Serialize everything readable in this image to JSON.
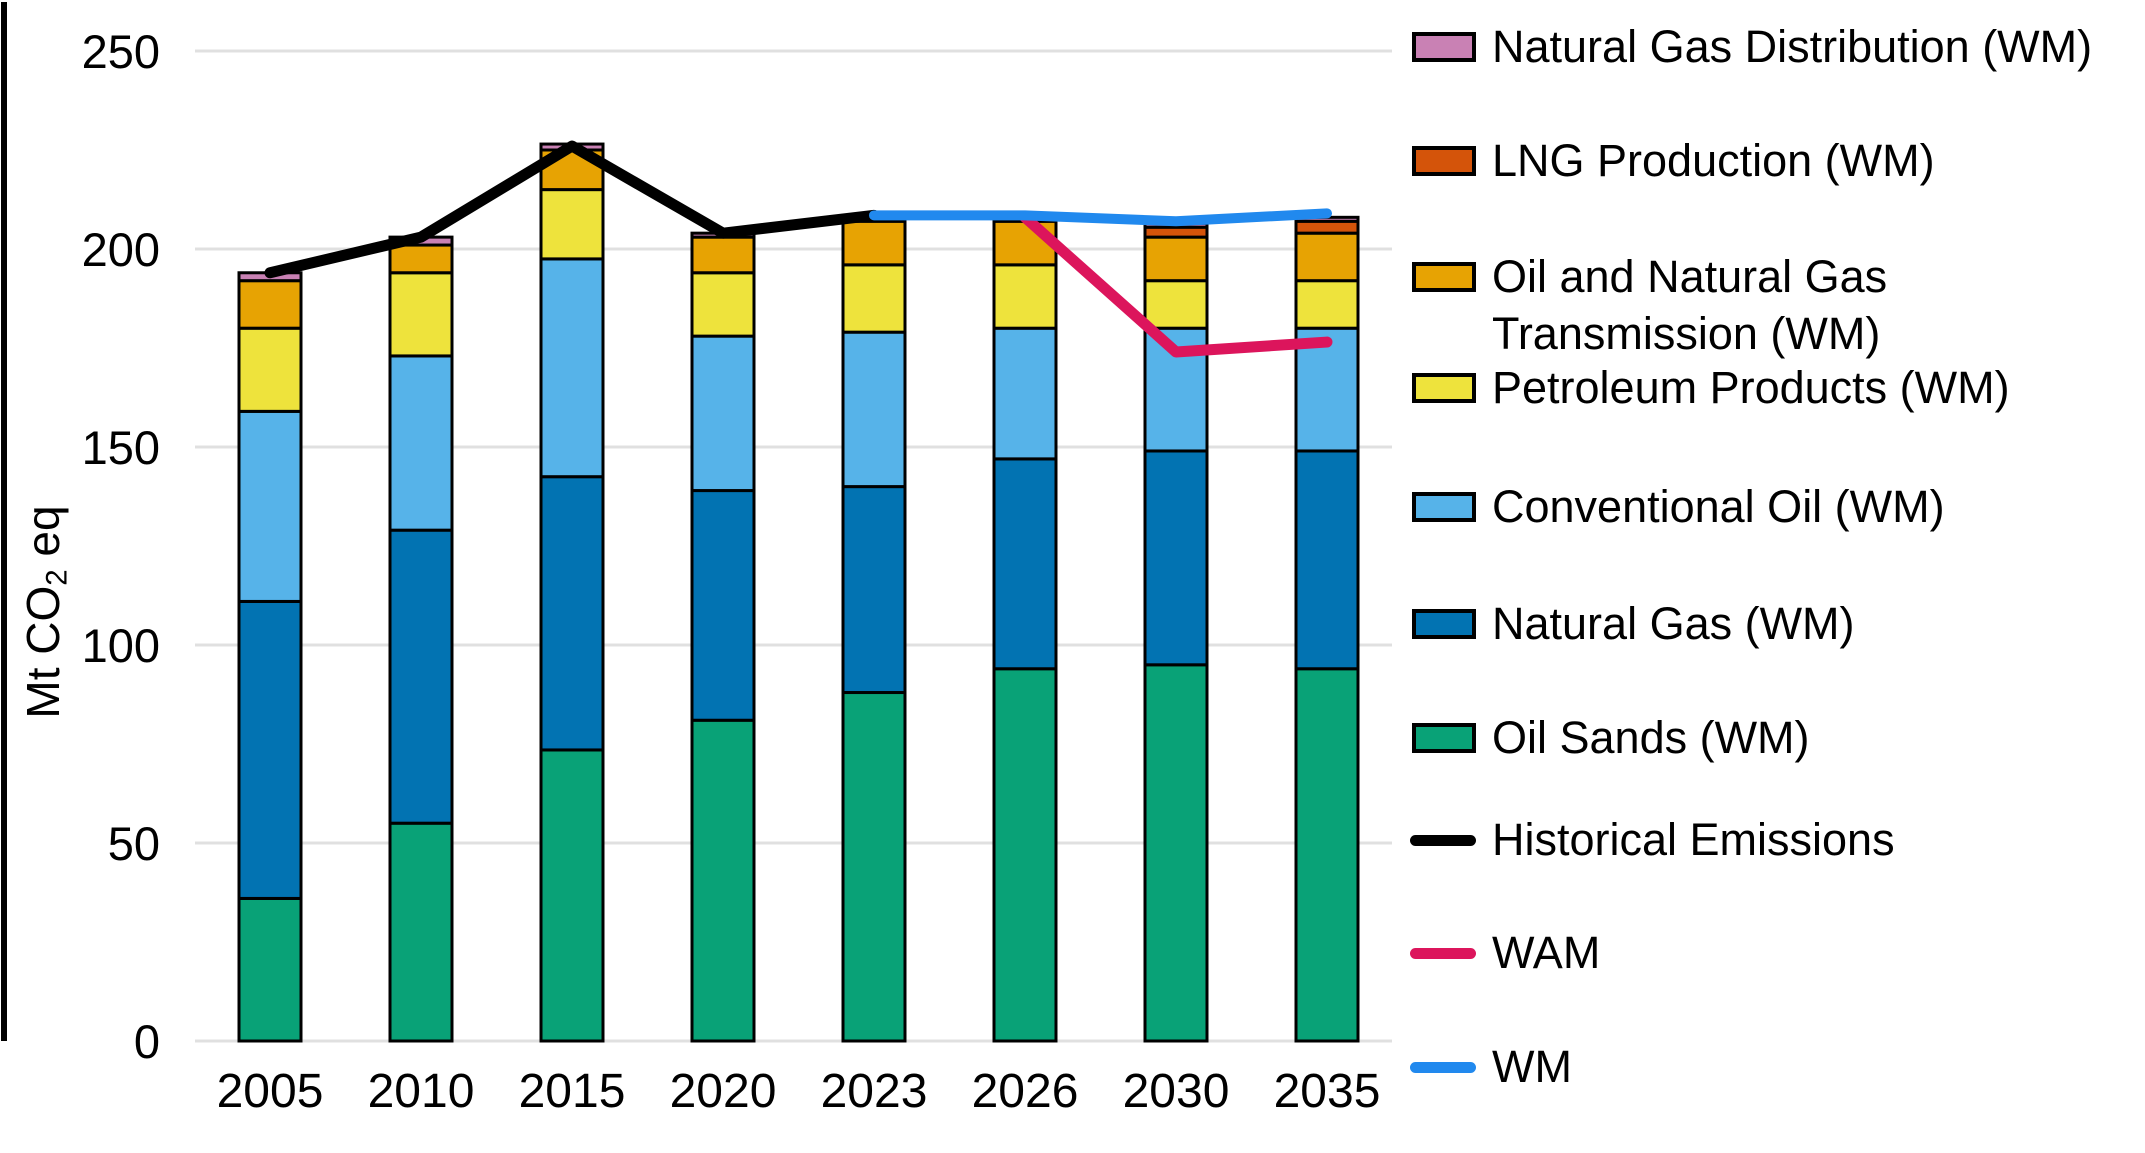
{
  "chart_data": {
    "type": "stacked-bar+line",
    "title": "",
    "y_axis": {
      "label_parts": [
        "Mt CO",
        "2",
        " eq"
      ],
      "ticks": [
        0,
        50,
        100,
        150,
        200,
        250
      ],
      "range": [
        0,
        250
      ],
      "grid": true
    },
    "x_axis": {
      "categories": [
        "2005",
        "2010",
        "2015",
        "2020",
        "2023",
        "2026",
        "2030",
        "2035"
      ]
    },
    "bar_series": [
      {
        "name": "Oil Sands (WM)",
        "color": "#09A277",
        "values": [
          36,
          55,
          73.5,
          81,
          88,
          94,
          95,
          94
        ]
      },
      {
        "name": "Natural Gas (WM)",
        "color": "#0273B2",
        "values": [
          75,
          74,
          69,
          58,
          52,
          53,
          54,
          55
        ]
      },
      {
        "name": "Conventional Oil (WM)",
        "color": "#56B3E9",
        "values": [
          48,
          44,
          55,
          39,
          39,
          33,
          31,
          31
        ]
      },
      {
        "name": "Petroleum Products (WM)",
        "color": "#EEE33C",
        "values": [
          21,
          21,
          17.5,
          16,
          17,
          16,
          12,
          12
        ]
      },
      {
        "name": "Oil and Natural Gas Transmission (WM)",
        "color": "#E7A303",
        "values": [
          12,
          7,
          10,
          9,
          11,
          11,
          11,
          12
        ]
      },
      {
        "name": "LNG Production (WM)",
        "color": "#D4540A",
        "values": [
          0,
          0,
          0,
          0,
          0,
          0,
          2.5,
          3
        ]
      },
      {
        "name": "Natural Gas Distribution (WM)",
        "color": "#C981B4",
        "values": [
          2,
          2,
          1.5,
          1,
          1.5,
          1.5,
          1,
          1
        ]
      }
    ],
    "line_series": [
      {
        "name": "Historical Emissions",
        "color": "#000000",
        "stroke_width": 11,
        "points": [
          [
            "2005",
            194
          ],
          [
            "2010",
            203
          ],
          [
            "2015",
            226
          ],
          [
            "2020",
            204
          ],
          [
            "2023",
            208.5
          ]
        ]
      },
      {
        "name": "WAM",
        "color": "#DC155C",
        "stroke_width": 11,
        "points": [
          [
            "2026",
            208
          ],
          [
            "2030",
            174
          ],
          [
            "2035",
            176.5
          ]
        ]
      },
      {
        "name": "WM",
        "color": "#2189EE",
        "stroke_width": 10,
        "points": [
          [
            "2023",
            208.5
          ],
          [
            "2026",
            208.5
          ],
          [
            "2030",
            207
          ],
          [
            "2035",
            209
          ]
        ]
      }
    ],
    "legend": [
      {
        "label_lines": [
          "Natural Gas Distribution (WM)"
        ],
        "swatch": "box",
        "color": "#C981B4"
      },
      {
        "label_lines": [
          "LNG Production (WM)"
        ],
        "swatch": "box",
        "color": "#D4540A"
      },
      {
        "label_lines": [
          "Oil and Natural Gas",
          "Transmission (WM)"
        ],
        "swatch": "box",
        "color": "#E7A303"
      },
      {
        "label_lines": [
          "Petroleum Products (WM)"
        ],
        "swatch": "box",
        "color": "#EEE33C"
      },
      {
        "label_lines": [
          "Conventional Oil (WM)"
        ],
        "swatch": "box",
        "color": "#56B3E9"
      },
      {
        "label_lines": [
          "Natural Gas (WM)"
        ],
        "swatch": "box",
        "color": "#0273B2"
      },
      {
        "label_lines": [
          "Oil Sands (WM)"
        ],
        "swatch": "box",
        "color": "#09A277"
      },
      {
        "label_lines": [
          "Historical Emissions"
        ],
        "swatch": "line",
        "color": "#000000"
      },
      {
        "label_lines": [
          "WAM"
        ],
        "swatch": "line",
        "color": "#DC155C"
      },
      {
        "label_lines": [
          "WM"
        ],
        "swatch": "line",
        "color": "#2189EE"
      }
    ],
    "grid_color": "#E0E0E0",
    "axis_line_color": "#000000",
    "legend_position": "right"
  }
}
